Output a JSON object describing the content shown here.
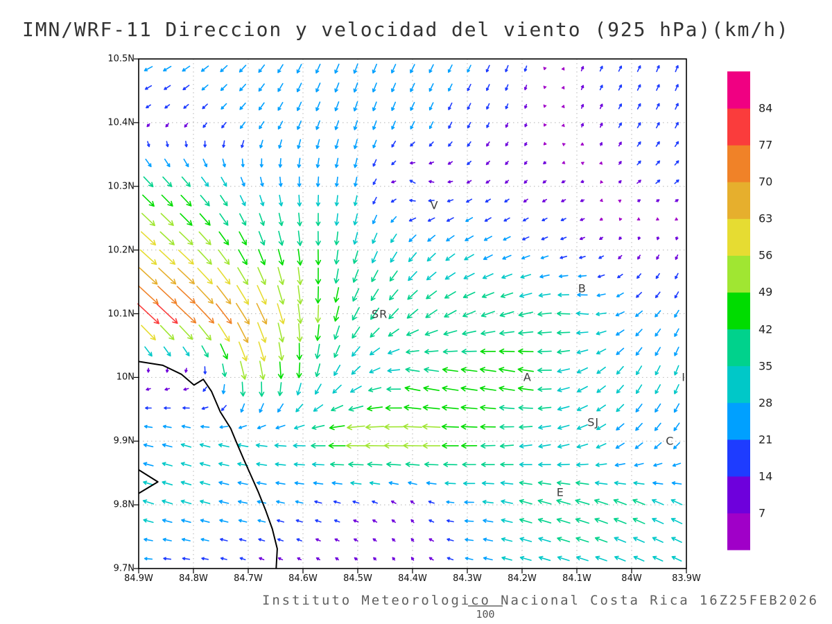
{
  "title": "IMN/WRF-11 Direccion y velocidad del viento (925 hPa)(km/h)",
  "footer": {
    "credit": "Instituto Meteorologico Nacional Costa Rica 16Z25FEB2026",
    "vector_scale_label": "100"
  },
  "chart_data": {
    "type": "vector_field",
    "title": "IMN/WRF-11 Direccion y velocidad del viento (925 hPa)(km/h)",
    "units": "km/h",
    "level": "925 hPa",
    "grid": true,
    "x_ticks": [
      "84.9W",
      "84.8W",
      "84.7W",
      "84.6W",
      "84.5W",
      "84.4W",
      "84.3W",
      "84.2W",
      "84.1W",
      "84W",
      "83.9W"
    ],
    "y_ticks": [
      "10.5N",
      "10.4N",
      "10.3N",
      "10.2N",
      "10.1N",
      "10N",
      "9.9N",
      "9.8N",
      "9.7N"
    ],
    "lon_range": [
      -84.9,
      -83.9
    ],
    "lat_range": [
      9.7,
      10.5
    ],
    "vector_scale_reference": 100,
    "colorbar": {
      "levels": [
        7,
        14,
        21,
        28,
        35,
        42,
        49,
        56,
        63,
        70,
        77,
        84
      ],
      "colors": [
        "#A000C8",
        "#6E00DC",
        "#1E3CFF",
        "#00A0FF",
        "#00C8C8",
        "#00D28C",
        "#00DC00",
        "#A0E632",
        "#E6DC32",
        "#E6AF2D",
        "#F08228",
        "#FA3C3C",
        "#F00082"
      ],
      "units": "km/h"
    },
    "station_labels": [
      {
        "label": "V",
        "lon": -84.36,
        "lat": 10.27
      },
      {
        "label": "B",
        "lon": -84.09,
        "lat": 10.14
      },
      {
        "label": "SR",
        "lon": -84.46,
        "lat": 10.1
      },
      {
        "label": "A",
        "lon": -84.19,
        "lat": 10.0
      },
      {
        "label": "SJ",
        "lon": -84.07,
        "lat": 9.93
      },
      {
        "label": "C",
        "lon": -83.93,
        "lat": 9.9
      },
      {
        "label": "E",
        "lon": -84.13,
        "lat": 9.82
      },
      {
        "label": "I",
        "lon": -83.905,
        "lat": 10.0
      }
    ],
    "wind_field": {
      "comment": "u=eastward, v=northward wind components in km/h on a 0.1 deg anchor grid; lats north-to-south",
      "lons": [
        -84.9,
        -84.8,
        -84.7,
        -84.6,
        -84.5,
        -84.4,
        -84.3,
        -84.2,
        -84.1,
        -84.0,
        -83.9
      ],
      "lats": [
        10.5,
        10.4,
        10.3,
        10.2,
        10.1,
        10.0,
        9.9,
        9.8,
        9.7
      ],
      "u": [
        [
          -25,
          -22,
          -18,
          -12,
          -10,
          -12,
          -10,
          -6,
          5,
          8,
          6
        ],
        [
          -8,
          -10,
          -15,
          -10,
          -8,
          -10,
          -8,
          -4,
          4,
          8,
          8
        ],
        [
          30,
          25,
          10,
          0,
          -5,
          -15,
          -12,
          -8,
          -10,
          10,
          12
        ],
        [
          45,
          40,
          20,
          5,
          -10,
          -20,
          -25,
          -20,
          -15,
          -5,
          -5
        ],
        [
          62,
          55,
          35,
          5,
          -20,
          -30,
          -35,
          -40,
          -35,
          -20,
          -10
        ],
        [
          -8,
          -10,
          12,
          -5,
          -25,
          -40,
          -46,
          -45,
          -30,
          -15,
          -10
        ],
        [
          -25,
          -28,
          -30,
          -35,
          -58,
          -56,
          -45,
          -35,
          -30,
          -20,
          -15
        ],
        [
          -30,
          -28,
          -25,
          -20,
          -15,
          -8,
          -25,
          -35,
          -40,
          -35,
          -30
        ],
        [
          -20,
          -18,
          -12,
          -8,
          -6,
          -5,
          -20,
          -30,
          -32,
          -28,
          -25
        ]
      ],
      "v": [
        [
          -12,
          -15,
          -20,
          -25,
          -26,
          -24,
          -20,
          -18,
          12,
          16,
          18
        ],
        [
          -6,
          -10,
          -18,
          -24,
          -26,
          -22,
          -16,
          -10,
          10,
          14,
          16
        ],
        [
          -30,
          -28,
          -25,
          -28,
          -26,
          10,
          -6,
          -8,
          -5,
          8,
          10
        ],
        [
          -40,
          -38,
          -40,
          -45,
          -35,
          -25,
          -15,
          -8,
          -5,
          -10,
          -12
        ],
        [
          -58,
          -52,
          -60,
          -55,
          -35,
          -25,
          -15,
          -10,
          5,
          -15,
          -20
        ],
        [
          -5,
          -6,
          -55,
          -40,
          -20,
          10,
          8,
          10,
          -15,
          -25,
          -28
        ],
        [
          5,
          8,
          5,
          0,
          0,
          0,
          0,
          -5,
          -10,
          -18,
          -20
        ],
        [
          10,
          8,
          5,
          5,
          5,
          8,
          0,
          10,
          12,
          15,
          15
        ],
        [
          0,
          2,
          5,
          5,
          6,
          8,
          5,
          8,
          10,
          12,
          12
        ]
      ]
    },
    "coastline": [
      [
        [
          -84.9,
          10.025
        ],
        [
          -84.856,
          10.019
        ],
        [
          -84.822,
          10.005
        ],
        [
          -84.799,
          9.988
        ],
        [
          -84.782,
          9.997
        ],
        [
          -84.767,
          9.978
        ],
        [
          -84.751,
          9.946
        ],
        [
          -84.732,
          9.92
        ],
        [
          -84.72,
          9.895
        ],
        [
          -84.708,
          9.871
        ],
        [
          -84.695,
          9.846
        ],
        [
          -84.682,
          9.821
        ],
        [
          -84.668,
          9.791
        ],
        [
          -84.656,
          9.762
        ],
        [
          -84.647,
          9.731
        ],
        [
          -84.649,
          9.7
        ]
      ],
      [
        [
          -84.9,
          9.855
        ],
        [
          -84.865,
          9.836
        ],
        [
          -84.9,
          9.818
        ]
      ]
    ]
  }
}
